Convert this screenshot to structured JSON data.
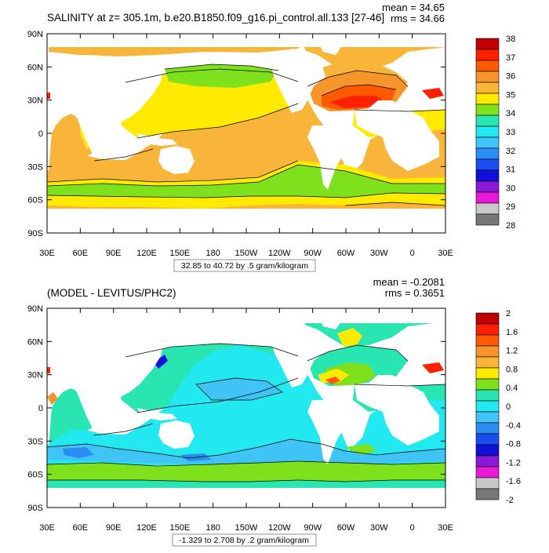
{
  "chart_data": [
    {
      "type": "heatmap",
      "title": "SALINITY at z= 305.1m, b.e20.B1850.f09_g16.pi_control.all.133 [27-46]",
      "stats": [
        "mean = 34.65",
        "rms = 34.66"
      ],
      "range_label": "32.85 to 40.72 by .5 gram/kilogram",
      "x_ticks": [
        "30E",
        "60E",
        "90E",
        "120E",
        "150E",
        "180",
        "150W",
        "120W",
        "90W",
        "60W",
        "30W",
        "0",
        "30E"
      ],
      "y_ticks": [
        "90N",
        "60N",
        "30N",
        "0",
        "30S",
        "60S",
        "90S"
      ],
      "colorbar": {
        "labels": [
          "38",
          "37",
          "36",
          "35",
          "34",
          "33",
          "32",
          "31",
          "30",
          "29",
          "28"
        ],
        "colors": [
          "#c00000",
          "#ff2000",
          "#ff5a00",
          "#f5952c",
          "#f9b53a",
          "#ffea00",
          "#7fe01c",
          "#29e5b2",
          "#22e8f0",
          "#40c4f5",
          "#2a8ef5",
          "#1a4cf0",
          "#1010d8",
          "#8a1ad6",
          "#e81ad8",
          "#c8c8c8",
          "#777777"
        ]
      },
      "colors": {
        "land": "#ffffff",
        "ocean_base": "#f9b53a",
        "subtropical": "#ffea00",
        "southern_band": "#7fe01c",
        "atlantic_high": "#ff5a00",
        "atlantic_max": "#ff2000"
      }
    },
    {
      "type": "heatmap",
      "title": "(MODEL - LEVITUS/PHC2)",
      "stats": [
        "mean = -0.2081",
        "rms = 0.3651"
      ],
      "range_label": "-1.329 to 2.708 by .2 gram/kilogram",
      "x_ticks": [
        "30E",
        "60E",
        "90E",
        "120E",
        "150E",
        "180",
        "150W",
        "120W",
        "90W",
        "60W",
        "30W",
        "0",
        "30E"
      ],
      "y_ticks": [
        "90N",
        "60N",
        "30N",
        "0",
        "30S",
        "60S",
        "90S"
      ],
      "colorbar": {
        "labels": [
          "2",
          "1.6",
          "1.2",
          "0.8",
          "0.4",
          "0",
          "-0.4",
          "-0.8",
          "-1.2",
          "-1.6",
          "-2"
        ],
        "colors": [
          "#c00000",
          "#ff2000",
          "#ff5a00",
          "#f5952c",
          "#f9b53a",
          "#ffea00",
          "#7fe01c",
          "#29e5b2",
          "#22e8f0",
          "#40c4f5",
          "#2a8ef5",
          "#1a4cf0",
          "#1010d8",
          "#8a1ad6",
          "#e81ad8",
          "#c8c8c8",
          "#777777"
        ]
      },
      "colors": {
        "land": "#ffffff",
        "ocean_base": "#29e5b2",
        "fresh": "#22e8f0",
        "band": "#7fe01c",
        "positive": "#ffea00"
      }
    }
  ]
}
